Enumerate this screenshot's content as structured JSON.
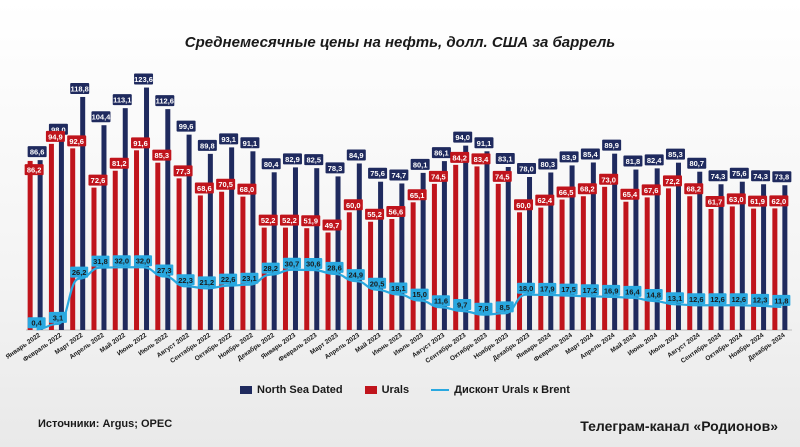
{
  "title": "Среднемесячные цены на нефть, долл. США за баррель",
  "sources": "Источники: Argus; OPEC",
  "channel": "Телеграм-канал «Родионов»",
  "colors": {
    "north_sea": "#1f2a5e",
    "urals": "#c0141c",
    "discount": "#29a8e0"
  },
  "chart_data": {
    "type": "bar",
    "title": "Среднемесячные цены на нефть, долл. США за баррель",
    "categories": [
      "Январь 2022",
      "Февраль 2022",
      "Март 2022",
      "Апрель 2022",
      "Май 2022",
      "Июнь 2022",
      "Июль 2022",
      "Август 2022",
      "Сентябрь 2022",
      "Октябрь 2022",
      "Ноябрь 2022",
      "Декабрь 2022",
      "Январь 2023",
      "Февраль 2023",
      "Март 2023",
      "Апрель 2023",
      "Май 2023",
      "Июнь 2023",
      "Июль 2023",
      "Август 2023",
      "Сентябрь 2023",
      "Октябрь 2023",
      "Ноябрь 2023",
      "Декабрь 2023",
      "Январь 2024",
      "Февраль 2024",
      "Март 2024",
      "Апрель 2024",
      "Май 2024",
      "Июнь 2024",
      "Июль 2024",
      "Август 2024",
      "Сентябрь 2024",
      "Октябрь 2024",
      "Ноябрь 2024",
      "Декабрь 2024"
    ],
    "series": [
      {
        "name": "North Sea Dated",
        "type": "bar",
        "values": [
          86.6,
          98.0,
          118.8,
          104.4,
          113.1,
          123.6,
          112.6,
          99.6,
          89.8,
          93.1,
          91.1,
          80.4,
          82.9,
          82.5,
          78.3,
          84.9,
          75.6,
          74.7,
          80.1,
          86.1,
          94.0,
          91.1,
          83.1,
          78.0,
          80.3,
          83.9,
          85.4,
          89.9,
          81.8,
          82.4,
          85.3,
          80.7,
          74.3,
          75.6,
          74.3,
          73.8
        ]
      },
      {
        "name": "Urals",
        "type": "bar",
        "values": [
          86.2,
          94.9,
          92.6,
          72.6,
          81.2,
          91.6,
          85.3,
          77.3,
          68.6,
          70.5,
          68.0,
          52.2,
          52.2,
          51.9,
          49.7,
          60.0,
          55.2,
          56.6,
          65.1,
          74.5,
          84.2,
          83.4,
          74.5,
          60.0,
          62.4,
          66.5,
          68.2,
          73.0,
          65.4,
          67.6,
          72.2,
          68.2,
          61.7,
          63.0,
          61.9,
          62.0
        ]
      },
      {
        "name": "Дисконт Urals к Brent",
        "type": "line",
        "values": [
          0.4,
          3.1,
          26.2,
          31.8,
          32.0,
          32.0,
          27.3,
          22.3,
          21.2,
          22.6,
          23.1,
          28.2,
          30.7,
          30.6,
          28.6,
          24.9,
          20.5,
          18.1,
          15.0,
          11.6,
          9.7,
          7.8,
          8.5,
          18.0,
          17.9,
          17.5,
          17.2,
          16.9,
          16.4,
          14.8,
          13.1,
          12.6,
          12.6,
          12.6,
          12.3,
          11.8
        ]
      }
    ],
    "ylim": [
      0,
      130
    ],
    "legend_position": "bottom",
    "grid": false
  }
}
